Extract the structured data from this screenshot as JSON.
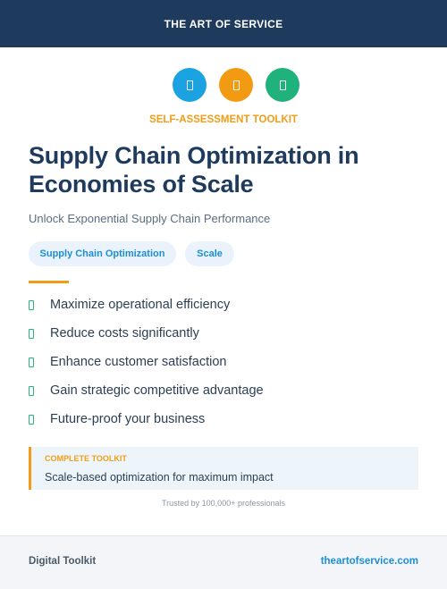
{
  "header": {
    "brand": "THE ART OF SERVICE"
  },
  "icons": [
    {
      "name": "document-icon",
      "color": "#1aa3e0"
    },
    {
      "name": "document-icon",
      "color": "#f19a12"
    },
    {
      "name": "document-icon",
      "color": "#1fb27c"
    }
  ],
  "kicker": "SELF-ASSESSMENT TOOLKIT",
  "title": "Supply Chain Optimization in Economies of Scale",
  "subtitle": "Unlock Exponential Supply Chain Performance",
  "tags": [
    "Supply Chain Optimization",
    "Scale"
  ],
  "bullets": [
    "Maximize operational efficiency",
    "Reduce costs significantly",
    "Enhance customer satisfaction",
    "Gain strategic competitive advantage",
    "Future-proof your business"
  ],
  "callout": {
    "label": "COMPLETE TOOLKIT",
    "text": "Scale-based optimization for maximum impact"
  },
  "trusted": "Trusted by 100,000+ professionals",
  "footer": {
    "left": "Digital Toolkit",
    "right": "theartofservice.com"
  },
  "colors": {
    "navy": "#1e3a5c",
    "accent_orange": "#f29d16",
    "accent_blue": "#1b8fd4",
    "accent_green": "#26b47e"
  }
}
